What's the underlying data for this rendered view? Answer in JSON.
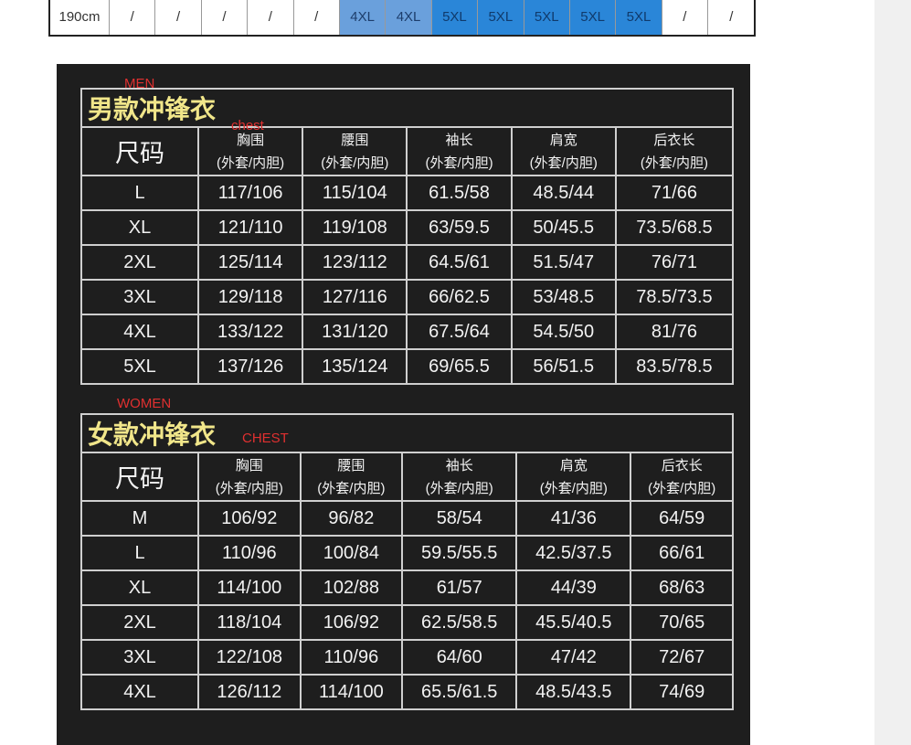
{
  "top_row": {
    "label": "190cm",
    "cells": [
      "/",
      "/",
      "/",
      "/",
      "/",
      "4XL",
      "4XL",
      "5XL",
      "5XL",
      "5XL",
      "5XL",
      "5XL",
      "/",
      "/"
    ],
    "colors": {
      "4XL": "#6aa0dc",
      "5XL": "#2a86d8"
    }
  },
  "annotations": {
    "men": "MEN",
    "men_chest": "chest",
    "women": "WOMEN",
    "women_chest": "CHEST"
  },
  "headers": {
    "size": "尺码",
    "cols": [
      {
        "name": "胸围",
        "sub": "(外套/内胆)"
      },
      {
        "name": "腰围",
        "sub": "(外套/内胆)"
      },
      {
        "name": "袖长",
        "sub": "(外套/内胆)"
      },
      {
        "name": "肩宽",
        "sub": "(外套/内胆)"
      },
      {
        "name": "后衣长",
        "sub": "(外套/内胆)"
      }
    ]
  },
  "men": {
    "title": "男款冲锋衣",
    "rows": [
      [
        "L",
        "117/106",
        "115/104",
        "61.5/58",
        "48.5/44",
        "71/66"
      ],
      [
        "XL",
        "121/110",
        "119/108",
        "63/59.5",
        "50/45.5",
        "73.5/68.5"
      ],
      [
        "2XL",
        "125/114",
        "123/112",
        "64.5/61",
        "51.5/47",
        "76/71"
      ],
      [
        "3XL",
        "129/118",
        "127/116",
        "66/62.5",
        "53/48.5",
        "78.5/73.5"
      ],
      [
        "4XL",
        "133/122",
        "131/120",
        "67.5/64",
        "54.5/50",
        "81/76"
      ],
      [
        "5XL",
        "137/126",
        "135/124",
        "69/65.5",
        "56/51.5",
        "83.5/78.5"
      ]
    ]
  },
  "women": {
    "title": "女款冲锋衣",
    "rows": [
      [
        "M",
        "106/92",
        "96/82",
        "58/54",
        "41/36",
        "64/59"
      ],
      [
        "L",
        "110/96",
        "100/84",
        "59.5/55.5",
        "42.5/37.5",
        "66/61"
      ],
      [
        "XL",
        "114/100",
        "102/88",
        "61/57",
        "44/39",
        "68/63"
      ],
      [
        "2XL",
        "118/104",
        "106/92",
        "62.5/58.5",
        "45.5/40.5",
        "70/65"
      ],
      [
        "3XL",
        "122/108",
        "110/96",
        "64/60",
        "47/42",
        "72/67"
      ],
      [
        "4XL",
        "126/112",
        "114/100",
        "65.5/61.5",
        "48.5/43.5",
        "74/69"
      ]
    ]
  }
}
